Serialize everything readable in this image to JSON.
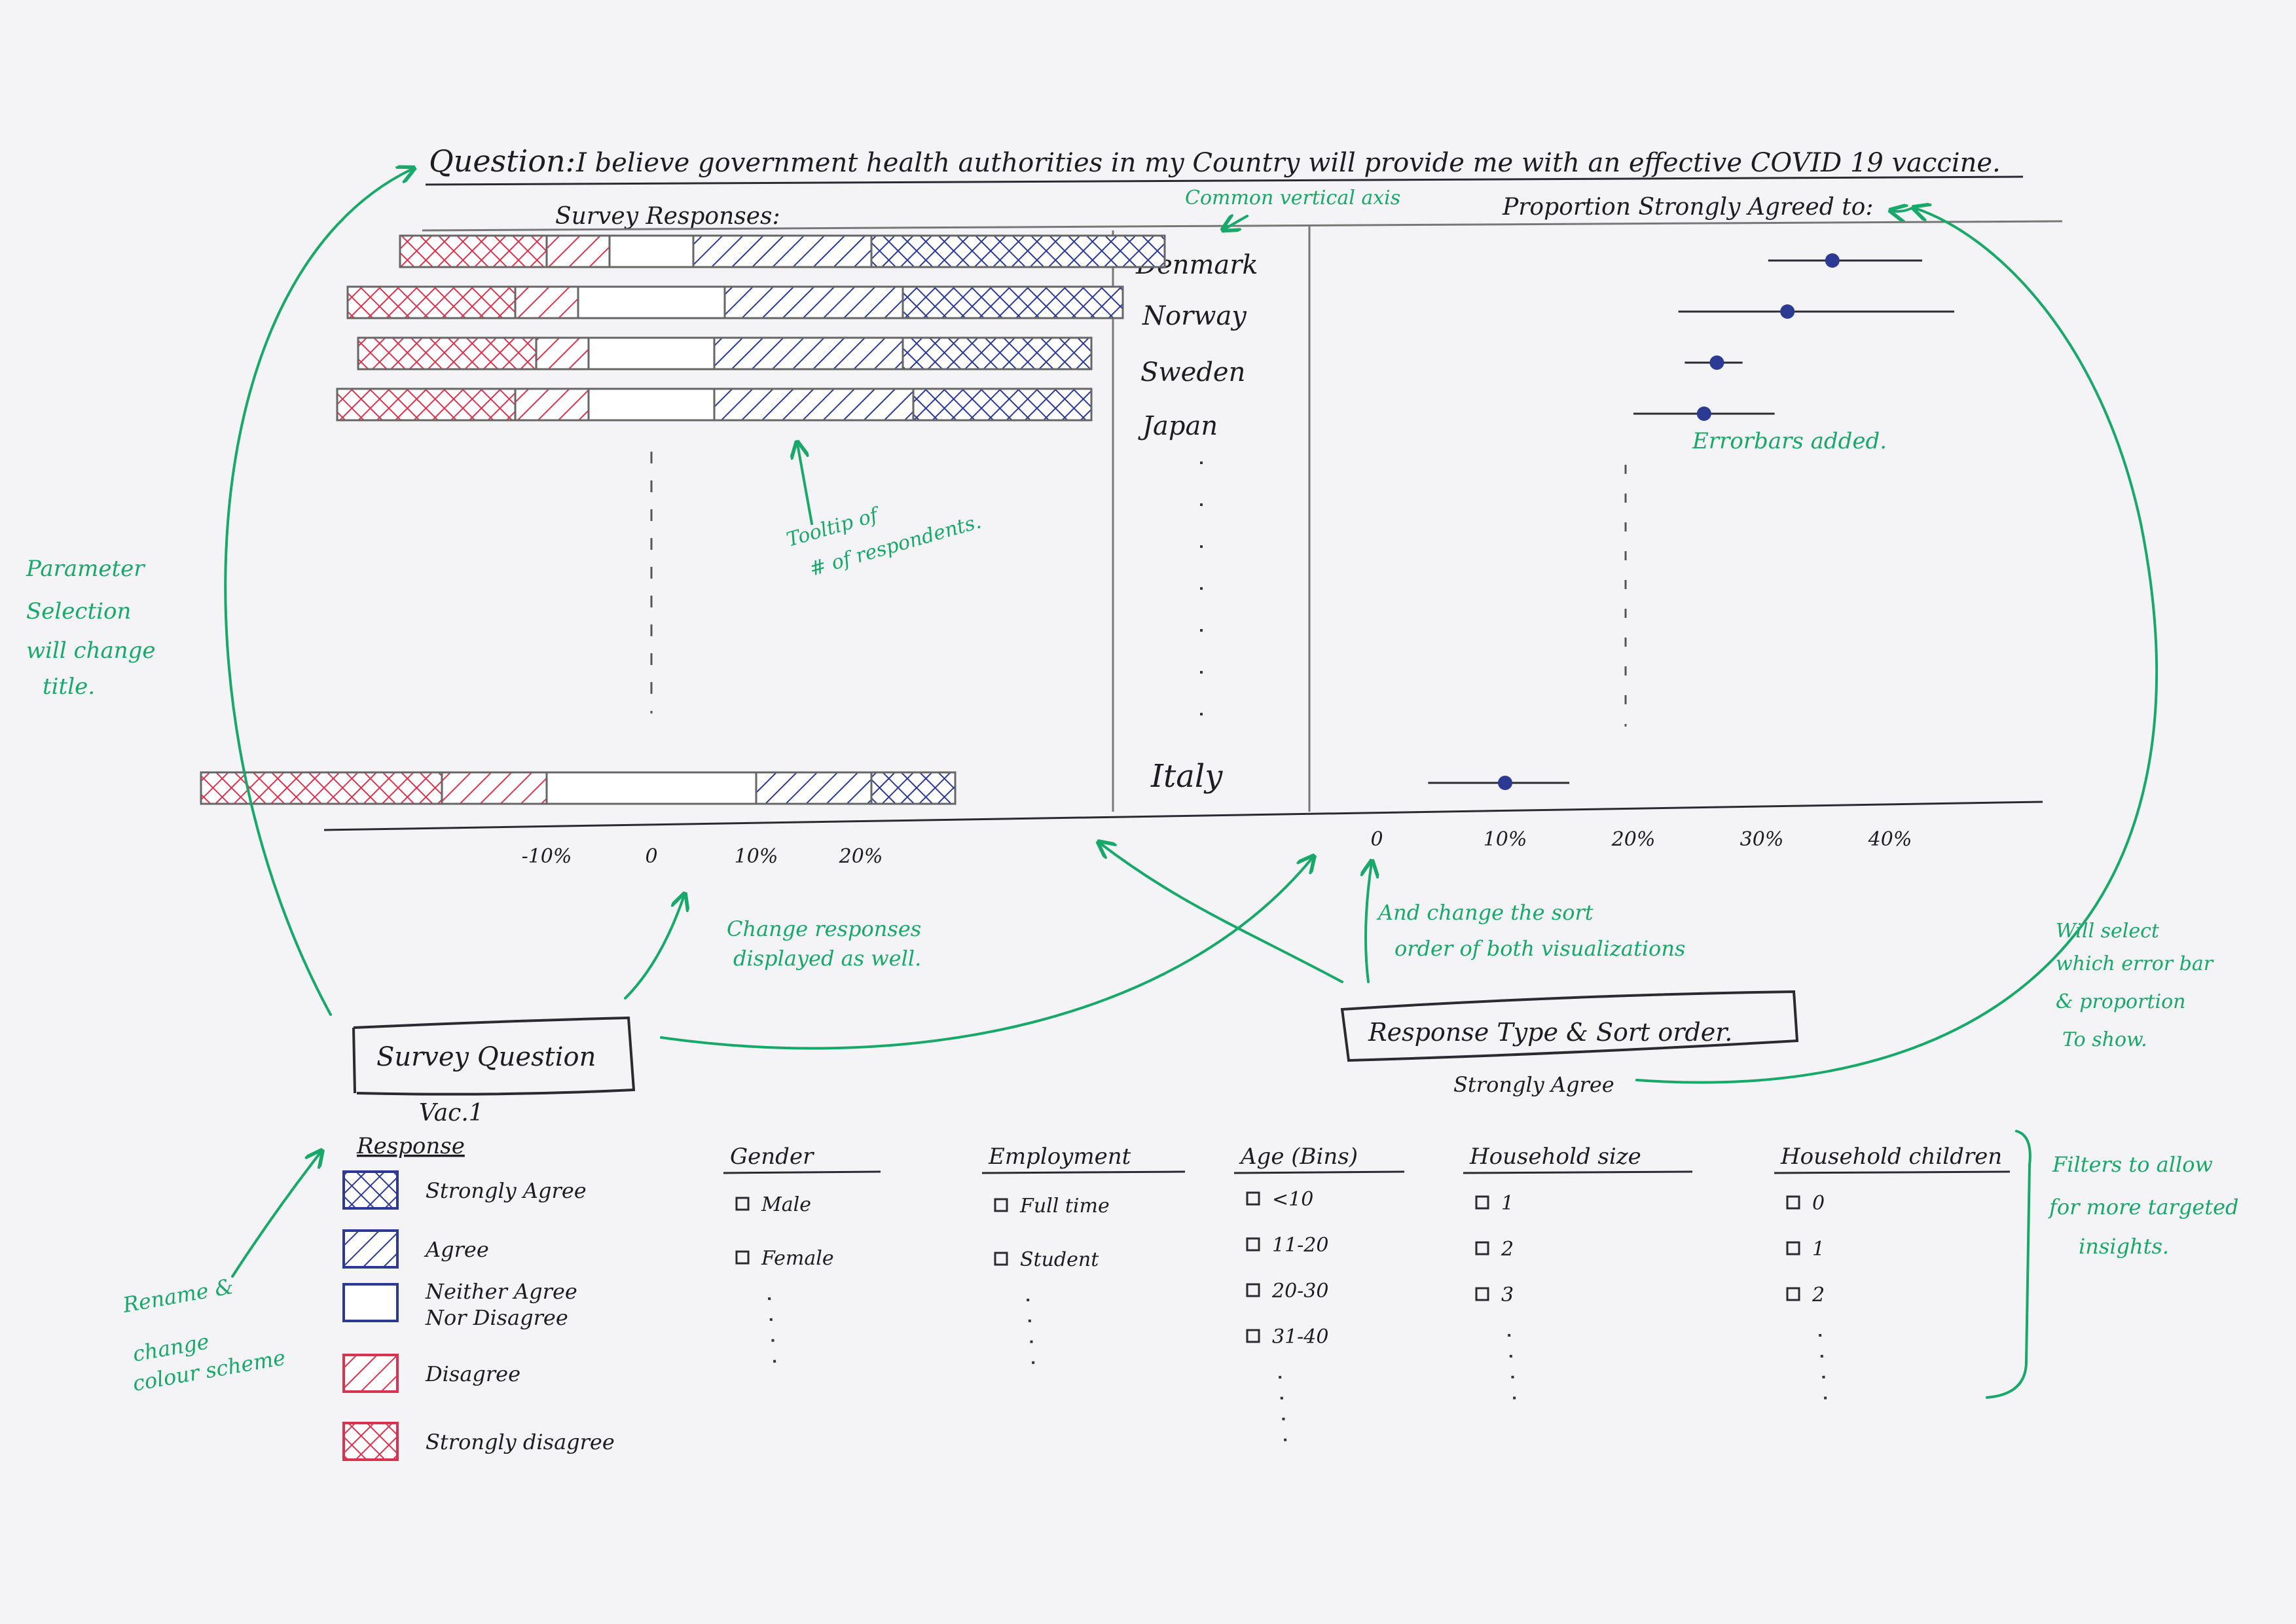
{
  "header": {
    "label": "Question:",
    "question": "I believe government health authorities in my Country will provide me with an effective COVID 19 vaccine."
  },
  "left_panel": {
    "title": "Survey Responses:"
  },
  "right_panel": {
    "title": "Proportion Strongly Agreed to:"
  },
  "countries": [
    "Denmark",
    "Norway",
    "Sweden",
    "Japan",
    "Italy"
  ],
  "chart_data": [
    {
      "type": "bar",
      "subtype": "diverging-stacked",
      "title": "Survey Responses:",
      "categories": [
        "Denmark",
        "Norway",
        "Sweden",
        "Japan",
        "Italy"
      ],
      "x_ticks": [
        "-10%",
        "0",
        "10%",
        "20%"
      ],
      "series": [
        {
          "name": "Strongly disagree",
          "color": "#d8344f",
          "values": [
            -14,
            -16,
            -17,
            -17,
            -23
          ]
        },
        {
          "name": "Disagree",
          "color": "#d8344f",
          "values": [
            -6,
            -6,
            -5,
            -7,
            -10
          ]
        },
        {
          "name": "Neither Agree Nor Disagree",
          "color": "#ffffff",
          "values": [
            8,
            14,
            12,
            12,
            20
          ]
        },
        {
          "name": "Agree",
          "color": "#2c3a94",
          "values": [
            17,
            17,
            18,
            19,
            11
          ]
        },
        {
          "name": "Strongly Agree",
          "color": "#2c3a94",
          "values": [
            28,
            21,
            18,
            17,
            8
          ]
        }
      ]
    },
    {
      "type": "scatter",
      "subtype": "dot-with-error-bars",
      "title": "Proportion Strongly Agreed to:",
      "categories": [
        "Denmark",
        "Norway",
        "Sweden",
        "Japan",
        "Italy"
      ],
      "x_ticks": [
        "0",
        "10%",
        "20%",
        "30%",
        "40%"
      ],
      "xlim": [
        0,
        40
      ],
      "points": [
        {
          "country": "Denmark",
          "value": 35.5,
          "low": 30.5,
          "high": 42.5
        },
        {
          "country": "Norway",
          "value": 32,
          "low": 23.5,
          "high": 45
        },
        {
          "country": "Sweden",
          "value": 26.5,
          "low": 24,
          "high": 28.5
        },
        {
          "country": "Japan",
          "value": 25.5,
          "low": 20,
          "high": 31
        },
        {
          "country": "Italy",
          "value": 10,
          "low": 4,
          "high": 15
        }
      ]
    }
  ],
  "annotations": {
    "common_axis": "Common vertical axis",
    "error_bars": "Errorbars added.",
    "tooltip": [
      "Tooltip of",
      "# of respondents."
    ],
    "parameter": [
      "Parameter",
      "Selection",
      "will change",
      "title."
    ],
    "change_responses": [
      "Change responses",
      "displayed as well."
    ],
    "sort_order": [
      "And change the sort",
      "order of both visualizations"
    ],
    "error_select": [
      "Will select",
      "which error bar",
      "& proportion",
      "To show."
    ],
    "rename": [
      "Rename &",
      "change",
      "colour scheme"
    ],
    "filters": [
      "Filters to allow",
      "for more targeted",
      "insights."
    ]
  },
  "controls": {
    "survey_question": {
      "label": "Survey Question",
      "value": "Vac.1"
    },
    "response_type": {
      "label": "Response Type & Sort order.",
      "value": "Strongly Agree"
    }
  },
  "legend": {
    "title": "Response",
    "items": [
      {
        "label": "Strongly Agree",
        "color": "#2c3a94",
        "hatch": "cross"
      },
      {
        "label": "Agree",
        "color": "#2c3a94",
        "hatch": "diag"
      },
      {
        "label": "Neither Agree",
        "label2": "Nor Disagree",
        "color": "#2c3a94",
        "hatch": "none"
      },
      {
        "label": "Disagree",
        "color": "#d8344f",
        "hatch": "diag"
      },
      {
        "label": "Strongly disagree",
        "color": "#d8344f",
        "hatch": "cross"
      }
    ]
  },
  "filters": [
    {
      "title": "Gender",
      "options": [
        "Male",
        "Female"
      ]
    },
    {
      "title": "Employment",
      "options": [
        "Full time",
        "Student"
      ]
    },
    {
      "title": "Age (Bins)",
      "options": [
        "<10",
        "11-20",
        "20-30",
        "31-40"
      ]
    },
    {
      "title": "Household size",
      "options": [
        "1",
        "2",
        "3"
      ]
    },
    {
      "title": "Household children",
      "options": [
        "0",
        "1",
        "2"
      ]
    }
  ]
}
